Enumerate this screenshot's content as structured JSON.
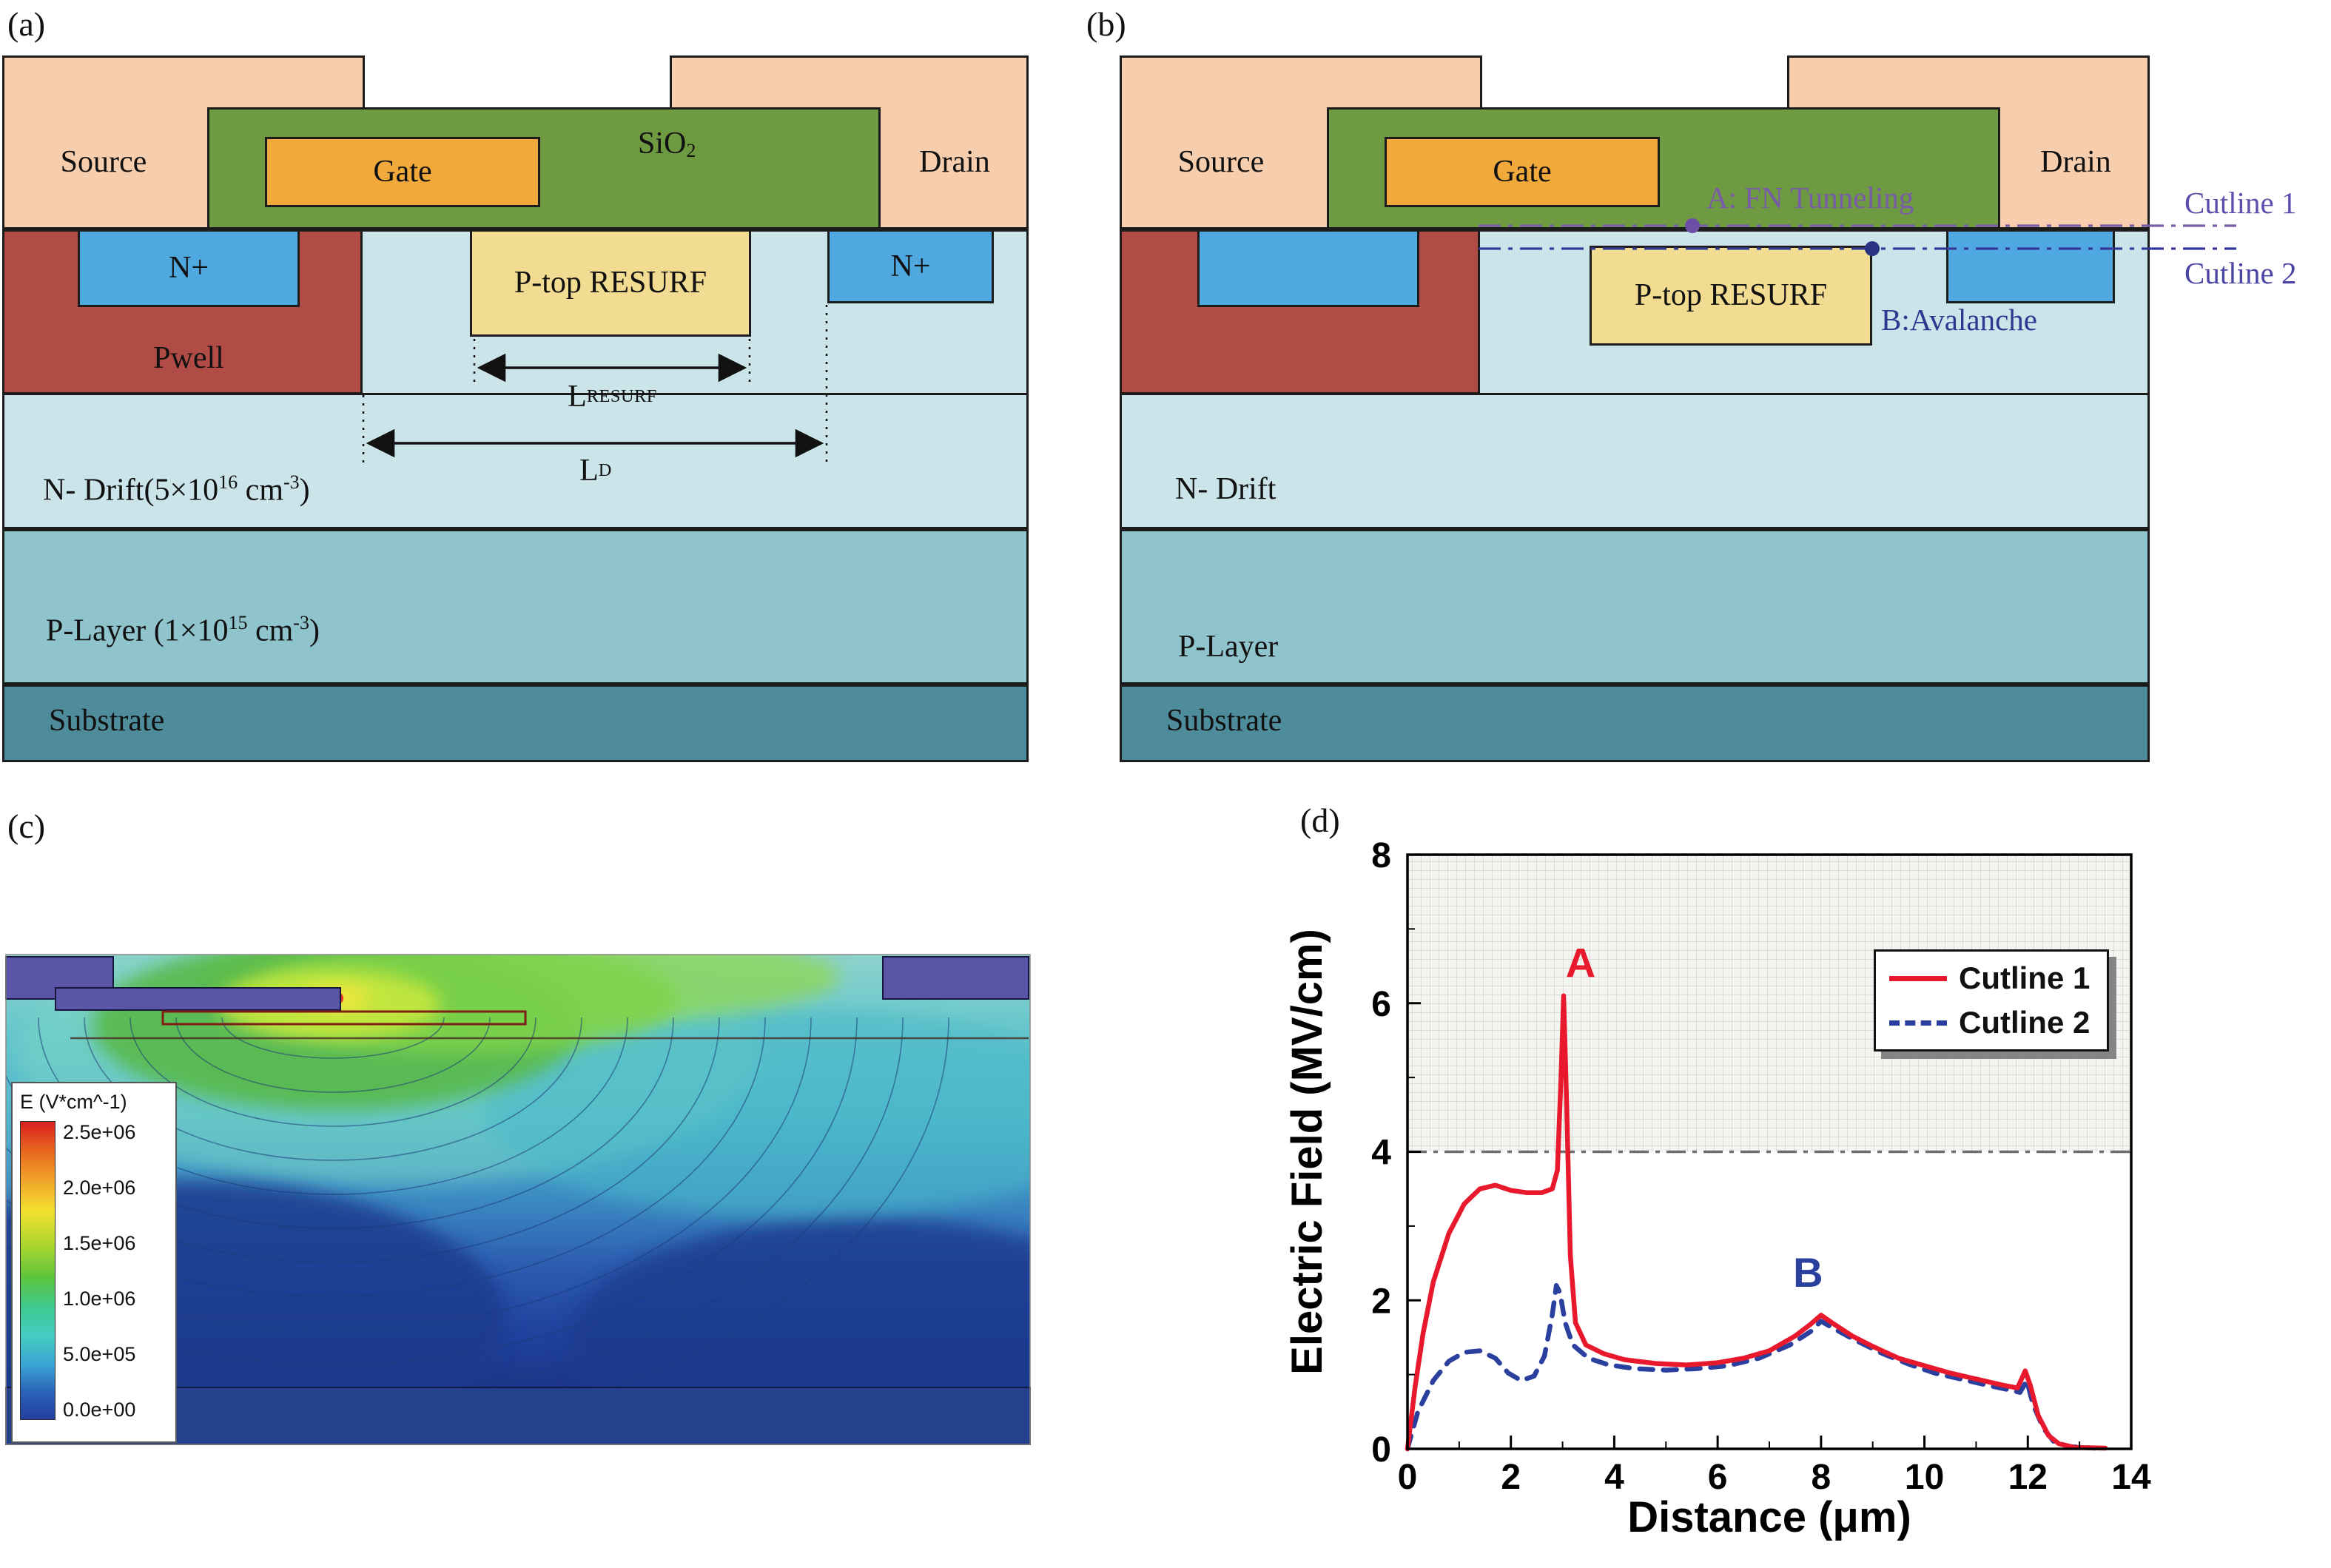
{
  "figure": {
    "panel_labels": {
      "a": "(a)",
      "b": "(b)",
      "c": "(c)",
      "d": "(d)"
    }
  },
  "colors": {
    "source_drain": "#F6CDAD",
    "oxide": "#6E9B41",
    "gate": "#F2A93B",
    "n_plus": "#4FA8E0",
    "pwell": "#B04B45",
    "p_top": "#F2DC91",
    "n_drift": "#CAE4EA",
    "p_layer": "#90C4CC",
    "substrate": "#4E8C9C",
    "cutline1": "#7A5BA8",
    "cutline2": "#35389B",
    "curve1": "#E8192C",
    "curve2": "#2B3F9E"
  },
  "device_a": {
    "source": "Source",
    "gate": "Gate",
    "sio2_base": "SiO",
    "sio2_sub": "2",
    "drain": "Drain",
    "n_plus_left": "N+",
    "n_plus_right": "N+",
    "pwell": "Pwell",
    "p_top": "P-top RESURF",
    "n_drift": {
      "p1": "N- Drift(5×10",
      "e1": "16",
      "p2": " cm",
      "e2": "-3",
      "p3": ")"
    },
    "p_layer": {
      "p1": "P-Layer (1×10",
      "e1": "15",
      "p2": " cm",
      "e2": "-3",
      "p3": ")"
    },
    "substrate": "Substrate",
    "dim_l_resurf": {
      "base": "L",
      "sub": "RESURF"
    },
    "dim_l_d": {
      "base": "L",
      "sub": "D"
    }
  },
  "device_b": {
    "source": "Source",
    "gate": "Gate",
    "drain": "Drain",
    "p_top": "P-top RESURF",
    "n_drift": "N- Drift",
    "p_layer": "P-Layer",
    "substrate": "Substrate",
    "annotation_a": "A: FN Tunneling",
    "annotation_b": "B:Avalanche",
    "cutline1_label": "Cutline 1",
    "cutline2_label": "Cutline 2"
  },
  "panel_c": {
    "legend_title": "E (V*cm^-1)",
    "legend_values": [
      "2.5e+06",
      "2.0e+06",
      "1.5e+06",
      "1.0e+06",
      "5.0e+05",
      "0.0e+00"
    ]
  },
  "chart_data": {
    "type": "line",
    "title": "",
    "xlabel": "Distance (μm)",
    "ylabel": "Electric Field (MV/cm)",
    "xlim": [
      0,
      14
    ],
    "ylim": [
      0,
      8
    ],
    "xticks": [
      0,
      2,
      4,
      6,
      8,
      10,
      12,
      14
    ],
    "yticks": [
      0,
      2,
      4,
      6,
      8
    ],
    "grid": false,
    "legend_position": "top-right",
    "threshold_line": {
      "y": 4,
      "style": "dash-dot",
      "color": "#6e6e6e"
    },
    "hatched_region": {
      "from_y": 4,
      "to_y": 8
    },
    "annotations": [
      {
        "text": "A",
        "x": 3.35,
        "y": 6.35,
        "color": "#E8192C"
      },
      {
        "text": "B",
        "x": 7.75,
        "y": 2.18,
        "color": "#2B3F9E"
      }
    ],
    "series": [
      {
        "name": "Cutline 1",
        "color": "#E8192C",
        "style": "solid",
        "points": [
          [
            0,
            0
          ],
          [
            0.15,
            0.85
          ],
          [
            0.3,
            1.55
          ],
          [
            0.5,
            2.25
          ],
          [
            0.8,
            2.9
          ],
          [
            1.1,
            3.3
          ],
          [
            1.4,
            3.5
          ],
          [
            1.7,
            3.55
          ],
          [
            2,
            3.48
          ],
          [
            2.3,
            3.45
          ],
          [
            2.6,
            3.45
          ],
          [
            2.8,
            3.5
          ],
          [
            2.9,
            3.75
          ],
          [
            2.97,
            5.0
          ],
          [
            3.02,
            6.1
          ],
          [
            3.08,
            4.6
          ],
          [
            3.15,
            2.6
          ],
          [
            3.25,
            1.7
          ],
          [
            3.45,
            1.4
          ],
          [
            3.8,
            1.28
          ],
          [
            4.2,
            1.2
          ],
          [
            4.8,
            1.15
          ],
          [
            5.4,
            1.13
          ],
          [
            6,
            1.16
          ],
          [
            6.5,
            1.22
          ],
          [
            7,
            1.32
          ],
          [
            7.5,
            1.52
          ],
          [
            7.8,
            1.68
          ],
          [
            8,
            1.8
          ],
          [
            8.25,
            1.68
          ],
          [
            8.6,
            1.52
          ],
          [
            9,
            1.38
          ],
          [
            9.5,
            1.22
          ],
          [
            10,
            1.12
          ],
          [
            10.5,
            1.02
          ],
          [
            11,
            0.94
          ],
          [
            11.5,
            0.86
          ],
          [
            11.8,
            0.82
          ],
          [
            11.95,
            1.05
          ],
          [
            12.05,
            0.85
          ],
          [
            12.2,
            0.45
          ],
          [
            12.4,
            0.18
          ],
          [
            12.6,
            0.07
          ],
          [
            12.9,
            0.02
          ],
          [
            13.5,
            0.01
          ]
        ]
      },
      {
        "name": "Cutline 2",
        "color": "#2B3F9E",
        "style": "dashed",
        "points": [
          [
            0,
            0
          ],
          [
            0.2,
            0.5
          ],
          [
            0.5,
            0.92
          ],
          [
            0.8,
            1.18
          ],
          [
            1.1,
            1.3
          ],
          [
            1.4,
            1.32
          ],
          [
            1.7,
            1.22
          ],
          [
            1.95,
            1.02
          ],
          [
            2.2,
            0.92
          ],
          [
            2.45,
            0.98
          ],
          [
            2.65,
            1.25
          ],
          [
            2.8,
            1.8
          ],
          [
            2.88,
            2.2
          ],
          [
            2.95,
            2.1
          ],
          [
            3.05,
            1.7
          ],
          [
            3.2,
            1.4
          ],
          [
            3.5,
            1.22
          ],
          [
            3.9,
            1.13
          ],
          [
            4.4,
            1.08
          ],
          [
            5,
            1.06
          ],
          [
            5.6,
            1.08
          ],
          [
            6.2,
            1.12
          ],
          [
            6.8,
            1.22
          ],
          [
            7.4,
            1.4
          ],
          [
            7.8,
            1.58
          ],
          [
            8,
            1.72
          ],
          [
            8.3,
            1.6
          ],
          [
            8.7,
            1.45
          ],
          [
            9.2,
            1.28
          ],
          [
            9.7,
            1.14
          ],
          [
            10.2,
            1.02
          ],
          [
            10.7,
            0.94
          ],
          [
            11.2,
            0.86
          ],
          [
            11.6,
            0.8
          ],
          [
            11.85,
            0.76
          ],
          [
            11.98,
            0.92
          ],
          [
            12.1,
            0.6
          ],
          [
            12.3,
            0.28
          ],
          [
            12.5,
            0.1
          ],
          [
            12.8,
            0.03
          ],
          [
            13.3,
            0.01
          ]
        ]
      }
    ]
  }
}
